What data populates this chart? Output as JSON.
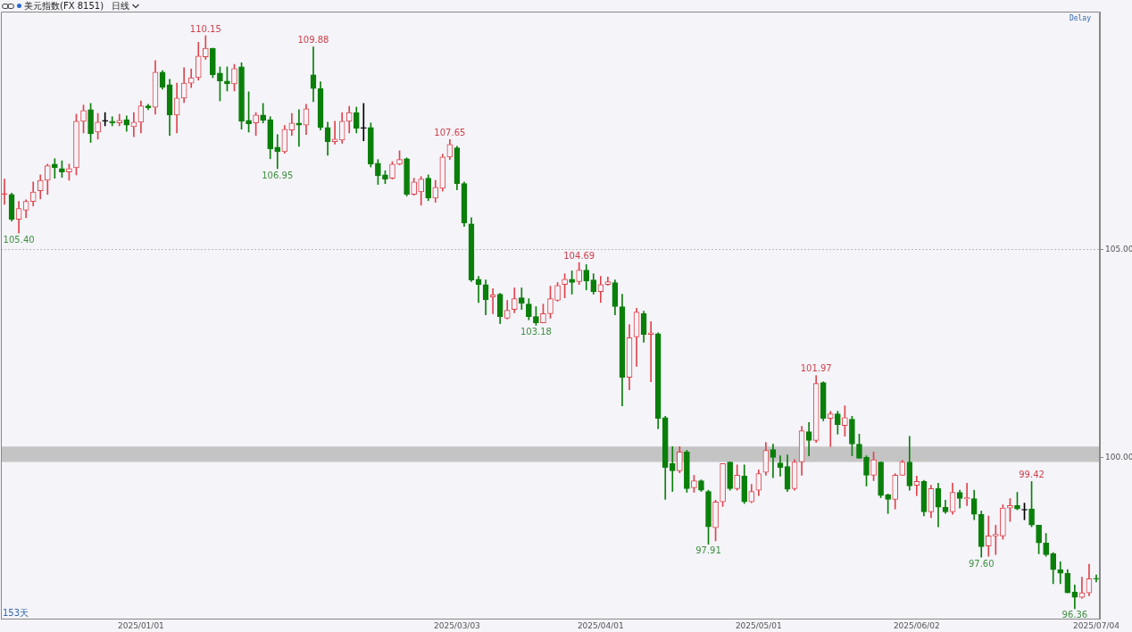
{
  "chart_data": {
    "type": "candlestick",
    "title": "美元指数(FX 8151)",
    "subtitle": "日线",
    "categories": [
      null,
      null,
      null,
      null,
      null,
      null,
      null,
      null,
      null,
      null,
      null,
      null,
      null,
      null,
      null,
      null,
      null,
      null,
      null,
      "2025/01/01",
      null,
      null,
      null,
      null,
      null,
      null,
      null,
      null,
      null,
      null,
      null,
      null,
      null,
      null,
      null,
      null,
      null,
      null,
      null,
      null,
      null,
      null,
      null,
      null,
      null,
      null,
      null,
      null,
      null,
      null,
      null,
      null,
      null,
      null,
      null,
      null,
      null,
      null,
      null,
      null,
      null,
      null,
      null,
      "2025/03/03",
      null,
      null,
      null,
      null,
      null,
      null,
      null,
      null,
      null,
      null,
      null,
      null,
      null,
      null,
      null,
      null,
      null,
      null,
      null,
      "2025/04/01",
      null,
      null,
      null,
      null,
      null,
      null,
      null,
      null,
      null,
      null,
      null,
      null,
      null,
      null,
      null,
      null,
      null,
      null,
      null,
      null,
      null,
      "2025/05/01",
      null,
      null,
      null,
      null,
      null,
      null,
      null,
      null,
      null,
      null,
      null,
      null,
      null,
      null,
      null,
      null,
      null,
      null,
      null,
      null,
      null,
      "2025/06/02",
      null,
      null,
      null,
      null,
      null,
      null,
      null,
      null,
      null,
      null,
      null,
      null,
      null,
      null,
      null,
      null,
      null,
      null,
      null,
      null,
      null,
      null,
      null,
      null,
      "2025/07/04"
    ],
    "ohlc": [
      [
        106.33,
        106.7,
        106.09,
        106.33
      ],
      [
        106.33,
        106.36,
        105.69,
        105.73
      ],
      [
        105.73,
        106.16,
        105.4,
        105.99
      ],
      [
        105.95,
        106.2,
        105.77,
        106.16
      ],
      [
        106.16,
        106.63,
        106.05,
        106.39
      ],
      [
        106.42,
        106.8,
        106.22,
        106.67
      ],
      [
        106.67,
        107.06,
        106.33,
        107.02
      ],
      [
        107.06,
        107.19,
        106.72,
        106.97
      ],
      [
        106.95,
        107.14,
        106.74,
        106.87
      ],
      [
        106.87,
        107.06,
        106.67,
        106.95
      ],
      [
        106.97,
        108.26,
        106.8,
        108.09
      ],
      [
        108.09,
        108.48,
        107.81,
        108.35
      ],
      [
        108.37,
        108.52,
        107.58,
        107.79
      ],
      [
        107.83,
        108.28,
        107.66,
        108.07
      ],
      [
        108.09,
        108.3,
        107.98,
        108.09
      ],
      [
        108.09,
        108.2,
        107.98,
        108.05
      ],
      [
        108.05,
        108.26,
        107.98,
        108.11
      ],
      [
        108.13,
        108.22,
        107.85,
        108.0
      ],
      [
        107.96,
        108.3,
        107.72,
        108.07
      ],
      [
        108.07,
        108.58,
        107.81,
        108.46
      ],
      [
        108.46,
        108.5,
        108.37,
        108.41
      ],
      [
        108.43,
        109.55,
        108.26,
        109.27
      ],
      [
        109.27,
        109.31,
        108.86,
        108.91
      ],
      [
        108.97,
        109.1,
        107.75,
        108.24
      ],
      [
        108.24,
        109.01,
        107.81,
        108.65
      ],
      [
        108.65,
        109.38,
        108.54,
        109.01
      ],
      [
        109.01,
        109.35,
        108.9,
        109.14
      ],
      [
        109.14,
        109.99,
        109.08,
        109.66
      ],
      [
        109.64,
        110.15,
        109.58,
        109.85
      ],
      [
        109.85,
        109.85,
        109.14,
        109.21
      ],
      [
        109.25,
        109.4,
        108.58,
        109.06
      ],
      [
        109.06,
        109.4,
        108.82,
        108.99
      ],
      [
        108.99,
        109.46,
        108.82,
        109.36
      ],
      [
        109.4,
        109.5,
        107.9,
        108.09
      ],
      [
        108.11,
        108.8,
        107.83,
        108.03
      ],
      [
        108.05,
        108.3,
        107.75,
        108.24
      ],
      [
        108.24,
        108.52,
        108.05,
        108.11
      ],
      [
        108.13,
        108.2,
        107.19,
        107.43
      ],
      [
        107.47,
        107.77,
        106.95,
        107.36
      ],
      [
        107.36,
        107.99,
        107.32,
        107.9
      ],
      [
        107.88,
        108.28,
        107.75,
        108.05
      ],
      [
        108.05,
        108.37,
        107.49,
        108.0
      ],
      [
        108.0,
        108.5,
        107.77,
        108.39
      ],
      [
        109.21,
        109.88,
        108.56,
        108.88
      ],
      [
        108.88,
        109.04,
        107.88,
        107.94
      ],
      [
        107.94,
        108.07,
        107.27,
        107.6
      ],
      [
        107.6,
        108.09,
        107.54,
        107.66
      ],
      [
        107.64,
        108.3,
        107.56,
        108.09
      ],
      [
        108.09,
        108.45,
        107.81,
        108.3
      ],
      [
        108.3,
        108.43,
        107.81,
        107.92
      ],
      [
        107.92,
        108.52,
        107.62,
        107.92
      ],
      [
        107.94,
        108.05,
        106.99,
        107.06
      ],
      [
        107.08,
        107.17,
        106.57,
        106.78
      ],
      [
        106.8,
        106.9,
        106.59,
        106.7
      ],
      [
        106.72,
        107.12,
        106.7,
        107.06
      ],
      [
        107.06,
        107.38,
        107.04,
        107.17
      ],
      [
        107.19,
        107.21,
        106.29,
        106.33
      ],
      [
        106.33,
        106.72,
        106.31,
        106.63
      ],
      [
        106.39,
        106.76,
        106.07,
        106.7
      ],
      [
        106.72,
        106.8,
        106.18,
        106.24
      ],
      [
        106.24,
        106.67,
        106.14,
        106.5
      ],
      [
        106.48,
        107.3,
        106.41,
        107.23
      ],
      [
        107.23,
        107.65,
        107.17,
        107.53
      ],
      [
        107.45,
        107.49,
        106.44,
        106.59
      ],
      [
        106.59,
        106.63,
        105.56,
        105.64
      ],
      [
        105.62,
        105.77,
        104.23,
        104.27
      ],
      [
        104.29,
        104.36,
        103.73,
        104.16
      ],
      [
        104.16,
        104.27,
        103.43,
        103.8
      ],
      [
        103.86,
        104.06,
        103.46,
        103.91
      ],
      [
        103.93,
        103.95,
        103.22,
        103.39
      ],
      [
        103.35,
        103.78,
        103.33,
        103.54
      ],
      [
        103.56,
        104.08,
        103.48,
        103.82
      ],
      [
        103.84,
        104.08,
        103.56,
        103.71
      ],
      [
        103.69,
        103.82,
        103.31,
        103.39
      ],
      [
        103.39,
        103.63,
        103.18,
        103.24
      ],
      [
        103.24,
        103.69,
        103.24,
        103.46
      ],
      [
        103.46,
        104.12,
        103.35,
        103.82
      ],
      [
        103.78,
        104.21,
        103.76,
        104.14
      ],
      [
        104.16,
        104.42,
        103.84,
        104.29
      ],
      [
        104.29,
        104.49,
        103.93,
        104.21
      ],
      [
        104.23,
        104.69,
        104.16,
        104.51
      ],
      [
        104.51,
        104.64,
        104.03,
        104.25
      ],
      [
        104.27,
        104.42,
        103.93,
        103.99
      ],
      [
        103.99,
        104.36,
        103.73,
        104.16
      ],
      [
        104.16,
        104.34,
        104.14,
        104.23
      ],
      [
        104.21,
        104.27,
        103.43,
        103.63
      ],
      [
        103.63,
        103.93,
        101.24,
        101.93
      ],
      [
        101.93,
        103.2,
        101.63,
        102.88
      ],
      [
        102.9,
        103.59,
        102.19,
        103.5
      ],
      [
        103.46,
        103.52,
        102.77,
        102.96
      ],
      [
        102.96,
        103.27,
        101.82,
        103.0
      ],
      [
        102.98,
        103.0,
        100.69,
        100.94
      ],
      [
        100.96,
        100.99,
        98.99,
        99.76
      ],
      [
        99.85,
        100.26,
        99.18,
        99.68
      ],
      [
        99.68,
        100.26,
        99.63,
        100.13
      ],
      [
        100.13,
        100.17,
        99.16,
        99.25
      ],
      [
        99.27,
        99.57,
        99.16,
        99.44
      ],
      [
        99.44,
        99.46,
        99.18,
        99.21
      ],
      [
        99.18,
        99.21,
        97.91,
        98.33
      ],
      [
        98.31,
        98.97,
        97.99,
        98.93
      ],
      [
        98.93,
        99.85,
        98.82,
        99.85
      ],
      [
        99.89,
        99.89,
        99.21,
        99.25
      ],
      [
        99.25,
        99.82,
        99.21,
        99.57
      ],
      [
        99.55,
        99.82,
        98.89,
        98.93
      ],
      [
        98.93,
        99.35,
        98.91,
        99.18
      ],
      [
        99.21,
        99.7,
        99.08,
        99.61
      ],
      [
        99.64,
        100.36,
        99.57,
        100.17
      ],
      [
        100.19,
        100.32,
        99.51,
        100.0
      ],
      [
        99.87,
        100.04,
        99.55,
        99.76
      ],
      [
        99.78,
        100.06,
        99.18,
        99.23
      ],
      [
        99.25,
        99.95,
        99.21,
        99.89
      ],
      [
        99.89,
        100.75,
        99.57,
        100.64
      ],
      [
        100.62,
        100.84,
        100.04,
        100.41
      ],
      [
        100.41,
        101.97,
        100.36,
        101.78
      ],
      [
        101.8,
        101.82,
        100.88,
        100.94
      ],
      [
        100.94,
        101.11,
        100.26,
        101.05
      ],
      [
        101.05,
        101.11,
        100.56,
        100.79
      ],
      [
        100.77,
        101.24,
        100.51,
        100.96
      ],
      [
        100.92,
        100.99,
        100.04,
        100.32
      ],
      [
        100.32,
        100.56,
        99.98,
        99.98
      ],
      [
        100.0,
        100.04,
        99.31,
        99.57
      ],
      [
        99.57,
        100.13,
        99.44,
        99.94
      ],
      [
        99.89,
        99.89,
        99.03,
        99.08
      ],
      [
        99.1,
        99.12,
        98.65,
        98.99
      ],
      [
        98.99,
        99.61,
        98.76,
        99.57
      ],
      [
        99.57,
        99.93,
        99.57,
        99.89
      ],
      [
        99.89,
        100.51,
        99.21,
        99.31
      ],
      [
        99.33,
        99.55,
        99.08,
        99.42
      ],
      [
        99.42,
        99.45,
        98.59,
        98.69
      ],
      [
        98.69,
        99.33,
        98.55,
        99.25
      ],
      [
        99.25,
        99.38,
        98.33,
        98.8
      ],
      [
        98.8,
        98.97,
        98.65,
        98.69
      ],
      [
        98.69,
        99.38,
        98.63,
        99.16
      ],
      [
        99.16,
        99.21,
        98.78,
        99.01
      ],
      [
        99.0,
        99.38,
        98.84,
        99.03
      ],
      [
        99.01,
        99.21,
        98.5,
        98.63
      ],
      [
        98.63,
        98.71,
        97.6,
        97.85
      ],
      [
        97.87,
        98.59,
        97.62,
        98.11
      ],
      [
        98.11,
        98.37,
        97.66,
        98.15
      ],
      [
        98.11,
        98.86,
        98.03,
        98.78
      ],
      [
        98.78,
        99.01,
        98.46,
        98.84
      ],
      [
        98.84,
        99.16,
        98.74,
        98.76
      ],
      [
        98.73,
        98.9,
        98.5,
        98.73
      ],
      [
        98.76,
        99.42,
        98.33,
        98.37
      ],
      [
        98.37,
        98.37,
        97.68,
        97.94
      ],
      [
        97.94,
        98.17,
        97.62,
        97.66
      ],
      [
        97.68,
        97.71,
        96.96,
        97.3
      ],
      [
        97.3,
        97.49,
        96.96,
        97.21
      ],
      [
        97.21,
        97.3,
        96.74,
        96.74
      ],
      [
        96.76,
        96.93,
        96.36,
        96.63
      ],
      [
        96.63,
        97.12,
        96.61,
        96.74
      ],
      [
        96.74,
        97.43,
        96.67,
        97.08
      ],
      [
        97.08,
        97.17,
        97.0,
        97.07
      ]
    ],
    "colors": [
      "#e0444c",
      "#0a7f0a",
      "#e0444c",
      "#e0444c",
      "#e0444c",
      "#e0444c",
      "#e0444c",
      "#0a7f0a",
      "#0a7f0a",
      "#e0444c",
      "#e0444c",
      "#e0444c",
      "#0a7f0a",
      "#e0444c",
      "#000000",
      "#0a7f0a",
      "#e0444c",
      "#0a7f0a",
      "#e0444c",
      "#e0444c",
      "#0a7f0a",
      "#e0444c",
      "#0a7f0a",
      "#0a7f0a",
      "#e0444c",
      "#e0444c",
      "#e0444c",
      "#e0444c",
      "#e0444c",
      "#0a7f0a",
      "#0a7f0a",
      "#0a7f0a",
      "#e0444c",
      "#0a7f0a",
      "#0a7f0a",
      "#e0444c",
      "#0a7f0a",
      "#0a7f0a",
      "#0a7f0a",
      "#e0444c",
      "#e0444c",
      "#0a7f0a",
      "#e0444c",
      "#0a7f0a",
      "#0a7f0a",
      "#0a7f0a",
      "#e0444c",
      "#e0444c",
      "#e0444c",
      "#0a7f0a",
      "#000000",
      "#0a7f0a",
      "#0a7f0a",
      "#0a7f0a",
      "#e0444c",
      "#e0444c",
      "#0a7f0a",
      "#e0444c",
      "#e0444c",
      "#0a7f0a",
      "#e0444c",
      "#e0444c",
      "#e0444c",
      "#0a7f0a",
      "#0a7f0a",
      "#0a7f0a",
      "#0a7f0a",
      "#0a7f0a",
      "#e0444c",
      "#0a7f0a",
      "#e0444c",
      "#e0444c",
      "#0a7f0a",
      "#0a7f0a",
      "#0a7f0a",
      "#e0444c",
      "#e0444c",
      "#e0444c",
      "#e0444c",
      "#0a7f0a",
      "#e0444c",
      "#0a7f0a",
      "#0a7f0a",
      "#e0444c",
      "#e0444c",
      "#0a7f0a",
      "#0a7f0a",
      "#e0444c",
      "#e0444c",
      "#0a7f0a",
      "#e0444c",
      "#0a7f0a",
      "#0a7f0a",
      "#0a7f0a",
      "#e0444c",
      "#0a7f0a",
      "#e0444c",
      "#0a7f0a",
      "#0a7f0a",
      "#e0444c",
      "#e0444c",
      "#0a7f0a",
      "#e0444c",
      "#0a7f0a",
      "#e0444c",
      "#e0444c",
      "#e0444c",
      "#0a7f0a",
      "#0a7f0a",
      "#0a7f0a",
      "#e0444c",
      "#e0444c",
      "#0a7f0a",
      "#e0444c",
      "#0a7f0a",
      "#e0444c",
      "#0a7f0a",
      "#e0444c",
      "#0a7f0a",
      "#0a7f0a",
      "#0a7f0a",
      "#e0444c",
      "#0a7f0a",
      "#0a7f0a",
      "#e0444c",
      "#e0444c",
      "#0a7f0a",
      "#e0444c",
      "#0a7f0a",
      "#e0444c",
      "#0a7f0a",
      "#0a7f0a",
      "#e0444c",
      "#0a7f0a",
      "#e0444c",
      "#0a7f0a",
      "#0a7f0a",
      "#e0444c",
      "#e0444c",
      "#e0444c",
      "#e0444c",
      "#0a7f0a",
      "#000000",
      "#0a7f0a",
      "#0a7f0a",
      "#0a7f0a",
      "#0a7f0a",
      "#0a7f0a",
      "#0a7f0a",
      "#0a7f0a",
      "#e0444c",
      "#e0444c",
      "#0a7f0a"
    ],
    "ylim": [
      96.12,
      110.73
    ],
    "yticks": [
      {
        "value": 100,
        "label": "100.00"
      },
      {
        "value": 105,
        "label": "105.00"
      }
    ],
    "grid": "y",
    "bands": [
      {
        "axis": "y",
        "from": 99.89,
        "to": 100.26,
        "color": "#c4c4c4"
      }
    ],
    "annotations": [
      "Delay",
      "153天",
      {
        "text": "110.15",
        "y": 110.15
      },
      {
        "text": "109.88",
        "y": 109.88
      },
      {
        "text": "107.65",
        "y": 107.65
      },
      {
        "text": "104.69",
        "y": 104.69
      },
      {
        "text": "101.97",
        "y": 101.97
      },
      {
        "text": "99.42",
        "y": 99.42
      },
      {
        "text": "105.40",
        "y": 105.4
      },
      {
        "text": "106.95",
        "y": 106.95
      },
      {
        "text": "103.18",
        "y": 103.18
      },
      {
        "text": "97.91",
        "y": 97.91
      },
      {
        "text": "97.60",
        "y": 97.6
      },
      {
        "text": "96.36",
        "y": 96.36
      }
    ],
    "legend": false
  }
}
